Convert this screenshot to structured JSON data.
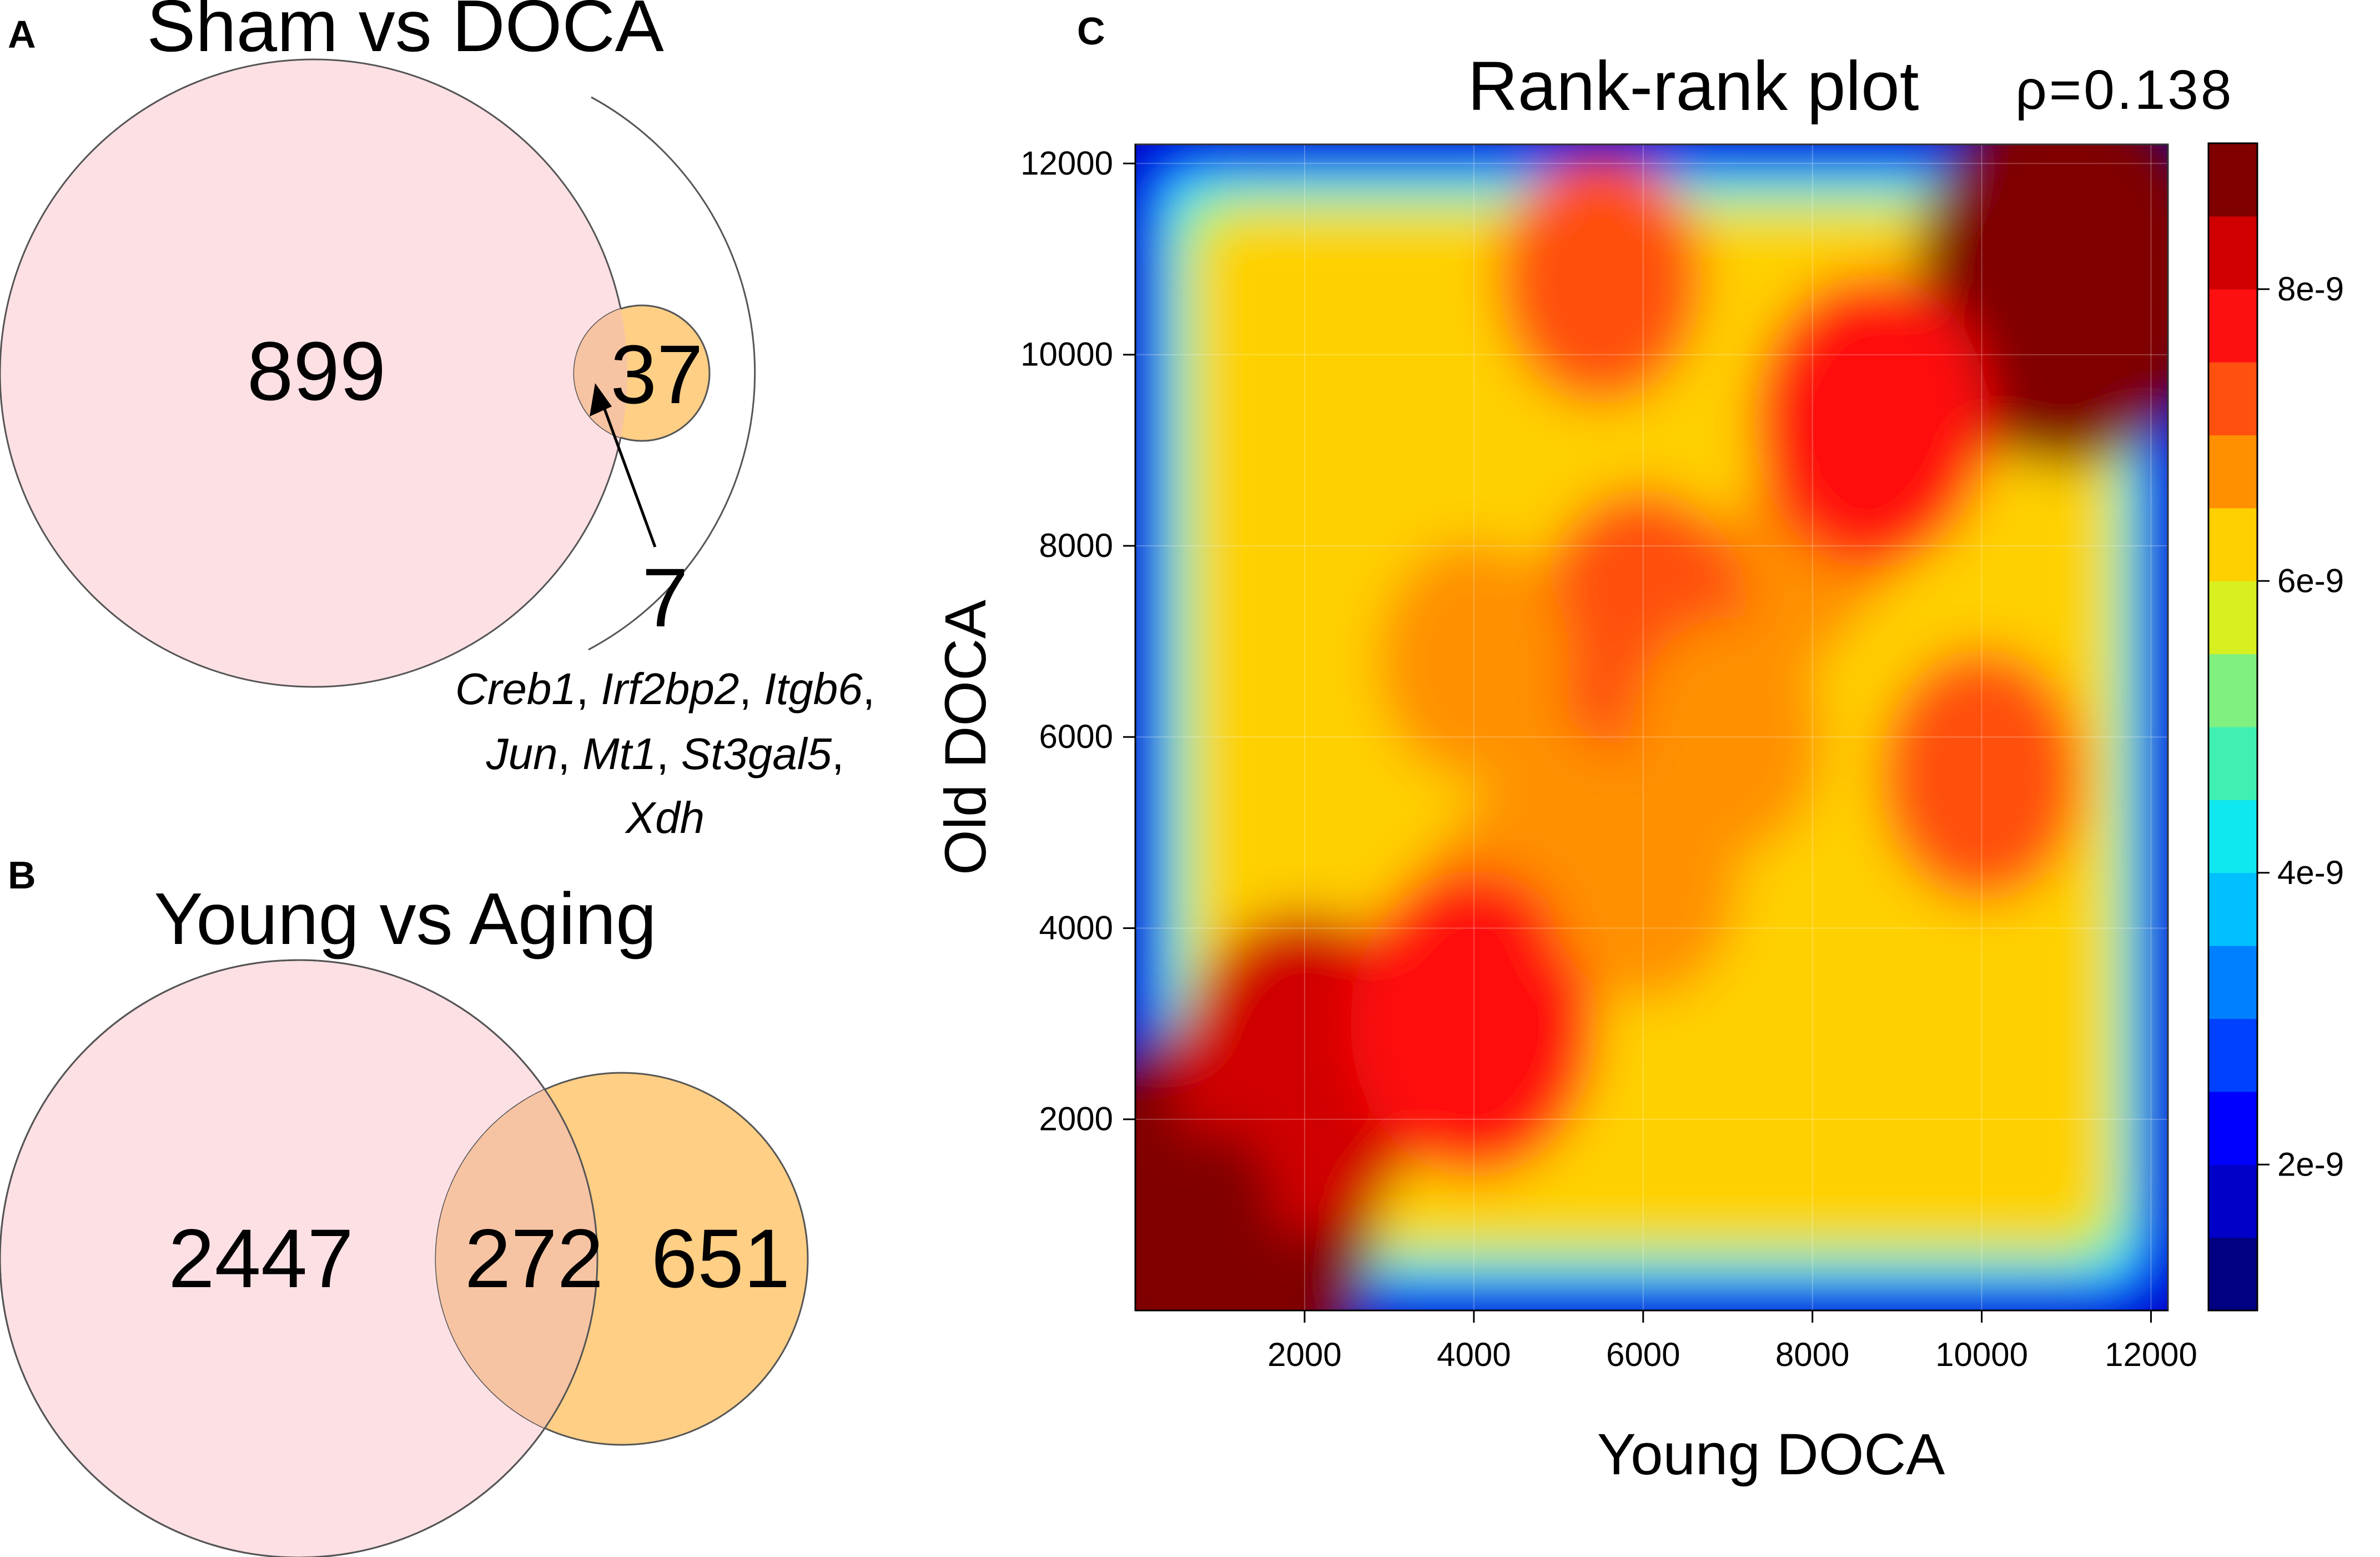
{
  "panels": {
    "a": {
      "label": "A",
      "title": "Sham vs DOCA",
      "left_only": "899",
      "right_only": "37",
      "overlap": "7",
      "genes_line1": [
        [
          "Creb1",
          ", "
        ],
        [
          "Irf2bp2",
          ", "
        ],
        [
          "Itgb6",
          ","
        ]
      ],
      "genes_line2": [
        [
          "Jun",
          ", "
        ],
        [
          "Mt1",
          ", "
        ],
        [
          "St3gal5",
          ","
        ]
      ],
      "genes_line3": [
        [
          "Xdh",
          ""
        ]
      ]
    },
    "b": {
      "label": "B",
      "title": "Young vs Aging",
      "left_only": "2447",
      "overlap": "272",
      "right_only": "651"
    },
    "c": {
      "label": "C",
      "title": "Rank-rank plot",
      "rho": "ρ=0.138",
      "xlabel": "Young DOCA",
      "ylabel": "Old DOCA"
    }
  },
  "colors": {
    "venn_left": "#fde0e4",
    "venn_right": "#fecf85",
    "venn_overlap": "#f7c4a3",
    "outline": "#555555"
  },
  "chart_data": [
    {
      "type": "venn",
      "title": "Sham vs DOCA",
      "sets": [
        {
          "name": "left",
          "only": 899
        },
        {
          "name": "right",
          "only": 37
        }
      ],
      "intersection": 7,
      "intersection_genes": [
        "Creb1",
        "Irf2bp2",
        "Itgb6",
        "Jun",
        "Mt1",
        "St3gal5",
        "Xdh"
      ]
    },
    {
      "type": "venn",
      "title": "Young vs Aging",
      "sets": [
        {
          "name": "left",
          "only": 2447
        },
        {
          "name": "right",
          "only": 651
        }
      ],
      "intersection": 272
    },
    {
      "type": "heatmap",
      "title": "Rank-rank plot",
      "annotation": "ρ=0.138",
      "xlabel": "Young DOCA",
      "ylabel": "Old DOCA",
      "xlim": [
        0,
        12200
      ],
      "ylim": [
        0,
        12200
      ],
      "xticks": [
        2000,
        4000,
        6000,
        8000,
        10000,
        12000
      ],
      "yticks": [
        2000,
        4000,
        6000,
        8000,
        10000,
        12000
      ],
      "zlim": [
        1e-09,
        9e-09
      ],
      "colorbar_ticks": [
        "2e-9",
        "4e-9",
        "6e-9",
        "8e-9"
      ],
      "colorbar_tick_values": [
        2e-09,
        4e-09,
        6e-09,
        8e-09
      ],
      "colors": [
        "#000080",
        "#0000c8",
        "#0000ff",
        "#0040ff",
        "#0080ff",
        "#00c0ff",
        "#10e8f0",
        "#40f0b0",
        "#80f080",
        "#d8f020",
        "#ffd000",
        "#ff9000",
        "#ff5010",
        "#ff1010",
        "#d00000",
        "#800000"
      ],
      "density_peaks": [
        {
          "x": 1000,
          "y": 1000,
          "value": 9e-09
        },
        {
          "x": 11000,
          "y": 10800,
          "value": 8.8e-09
        },
        {
          "x": 2000,
          "y": 2500,
          "value": 8e-09
        },
        {
          "x": 4000,
          "y": 3000,
          "value": 7.8e-09
        },
        {
          "x": 8700,
          "y": 9300,
          "value": 7.6e-09
        },
        {
          "x": 6000,
          "y": 7200,
          "value": 7.2e-09
        },
        {
          "x": 10000,
          "y": 5600,
          "value": 7e-09
        },
        {
          "x": 5500,
          "y": 10800,
          "value": 7e-09
        },
        {
          "x": 4000,
          "y": 6800,
          "value": 6.8e-09
        },
        {
          "x": 6000,
          "y": 4500,
          "value": 6.8e-09
        },
        {
          "x": 7000,
          "y": 6000,
          "value": 6.8e-09
        }
      ]
    }
  ]
}
